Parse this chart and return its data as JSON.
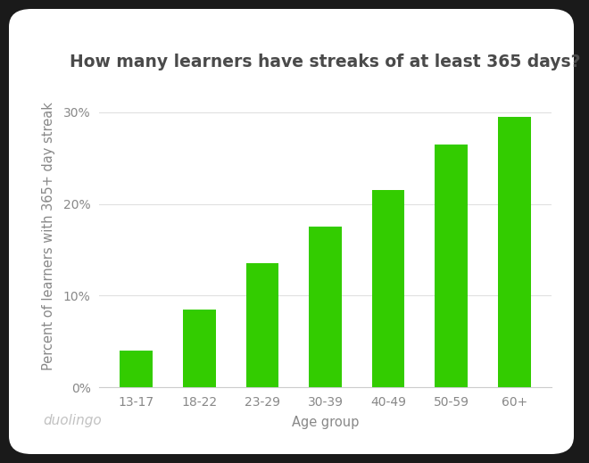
{
  "title": "How many learners have streaks of at least 365 days?",
  "categories": [
    "13-17",
    "18-22",
    "23-29",
    "30-39",
    "40-49",
    "50-59",
    "60+"
  ],
  "values": [
    4.0,
    8.5,
    13.5,
    17.5,
    21.5,
    26.5,
    29.5
  ],
  "bar_color": "#33cc00",
  "xlabel": "Age group",
  "ylabel": "Percent of learners with 365+ day streak",
  "ylim": [
    0,
    33
  ],
  "yticks": [
    0,
    10,
    20,
    30
  ],
  "ytick_labels": [
    "0%",
    "10%",
    "20%",
    "30%"
  ],
  "outer_background": "#1a1a2e",
  "card_background": "#ffffff",
  "title_fontsize": 13.5,
  "title_color": "#4a4a4a",
  "axis_label_fontsize": 10.5,
  "tick_fontsize": 10,
  "tick_color": "#888888",
  "watermark": "duolingo",
  "watermark_color": "#bbbbbb",
  "bar_width": 0.52
}
